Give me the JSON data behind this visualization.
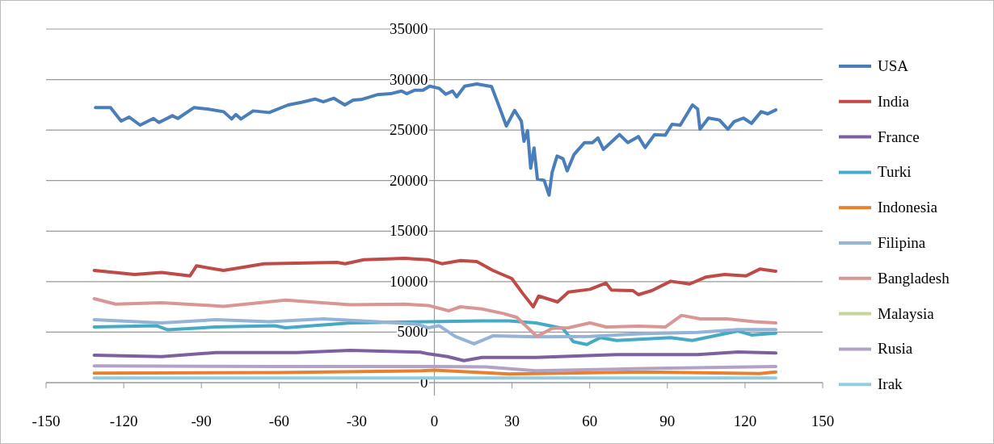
{
  "chart_data": {
    "type": "line",
    "xlim": [
      -150,
      150
    ],
    "xticks": [
      -150,
      -120,
      -90,
      -60,
      -30,
      0,
      30,
      60,
      90,
      120,
      150
    ],
    "ylim": [
      0,
      35000
    ],
    "yticks": [
      0,
      5000,
      10000,
      15000,
      20000,
      25000,
      30000,
      35000
    ],
    "grid": "y",
    "legend": "right",
    "marker": "none",
    "line_style": "solid",
    "series": [
      {
        "name": "USA",
        "color": "#4a7ebb",
        "x": [
          -130.9,
          -125.1,
          -121,
          -117.9,
          -113.7,
          -108.5,
          -106.4,
          -101.2,
          -99.1,
          -92.9,
          -87.7,
          -81.4,
          -78.3,
          -76.7,
          -74.7,
          -70,
          -63.8,
          -56.5,
          -51.3,
          -46.1,
          -42.9,
          -38.8,
          -34.6,
          -31.4,
          -28.3,
          -22.1,
          -16.9,
          -12.7,
          -10.7,
          -7.6,
          -4.4,
          -1.8,
          1.8,
          4.4,
          7,
          8.6,
          11.7,
          16.4,
          22.1,
          25.2,
          27.8,
          31,
          33.6,
          34.6,
          36,
          37.2,
          38.5,
          39.8,
          42.4,
          44.3,
          45.5,
          47.4,
          49.7,
          51.3,
          53.9,
          58,
          61.1,
          63.2,
          65.3,
          71.5,
          74.7,
          78.8,
          81.4,
          85.1,
          89.2,
          91.8,
          95,
          99.7,
          101.7,
          102.6,
          105.9,
          110.1,
          113.4,
          115.8,
          119.4,
          122.5,
          126.2,
          128.8,
          131.9
        ],
        "values": [
          27220,
          27220,
          25890,
          26290,
          25490,
          26150,
          25750,
          26420,
          26150,
          27220,
          27090,
          26820,
          26100,
          26550,
          26100,
          26900,
          26740,
          27490,
          27750,
          28070,
          27800,
          28150,
          27490,
          27970,
          28020,
          28500,
          28600,
          28870,
          28600,
          28950,
          28950,
          29350,
          29140,
          28550,
          28870,
          28290,
          29350,
          29560,
          29300,
          27220,
          25410,
          26950,
          25890,
          23890,
          24950,
          21230,
          23230,
          20160,
          20030,
          18560,
          20830,
          22430,
          22160,
          20960,
          22560,
          23760,
          23760,
          24230,
          23090,
          24560,
          23760,
          24360,
          23270,
          24560,
          24500,
          25570,
          25490,
          27490,
          27090,
          25090,
          26190,
          26000,
          25090,
          25840,
          26190,
          25660,
          26820,
          26610,
          27000
        ]
      },
      {
        "name": "India",
        "color": "#be4b48",
        "x": [
          -131.4,
          -115.8,
          -105.4,
          -94.4,
          -91.9,
          -81.4,
          -65.8,
          -53.3,
          -37.6,
          -34.5,
          -27.3,
          -11.7,
          -2.3,
          2.9,
          10.1,
          16.4,
          22.6,
          29.9,
          34.1,
          38.2,
          40.3,
          47.6,
          51.8,
          60.1,
          66.3,
          68.4,
          76.7,
          78.8,
          84,
          91.3,
          98.6,
          104.8,
          112.1,
          120.4,
          125.7,
          131.9
        ],
        "values": [
          11110,
          10710,
          10900,
          10570,
          11560,
          11110,
          11770,
          11820,
          11900,
          11770,
          12170,
          12300,
          12170,
          11770,
          12090,
          11980,
          11110,
          10310,
          8840,
          7510,
          8570,
          7990,
          8970,
          9240,
          9860,
          9160,
          9110,
          8710,
          9110,
          10040,
          9770,
          10440,
          10710,
          10570,
          11240,
          11030
        ]
      },
      {
        "name": "France",
        "color": "#7d60a0",
        "x": [
          -131.4,
          -105.4,
          -84.5,
          -53.3,
          -32.5,
          -5.4,
          -2.3,
          5.1,
          11.4,
          18.4,
          39.2,
          70.4,
          101.7,
          117.3,
          131.9
        ],
        "values": [
          2720,
          2580,
          2980,
          2980,
          3200,
          3020,
          2850,
          2580,
          2180,
          2500,
          2500,
          2770,
          2770,
          3040,
          2930
        ]
      },
      {
        "name": "Turki",
        "color": "#46aac5",
        "x": [
          -131.4,
          -107.4,
          -103.2,
          -84.5,
          -61.6,
          -57.5,
          -32.5,
          -2.3,
          18.4,
          28.8,
          39.2,
          49.6,
          53.7,
          58.9,
          64.1,
          70.4,
          91.3,
          99.6,
          117.3,
          122.5,
          131.9
        ],
        "values": [
          5510,
          5640,
          5240,
          5510,
          5640,
          5430,
          5910,
          6040,
          6120,
          6120,
          5910,
          5380,
          4050,
          3780,
          4450,
          4180,
          4450,
          4180,
          5110,
          4720,
          4900
        ]
      },
      {
        "name": "Indonesia",
        "color": "#e8812f",
        "x": [
          -131.4,
          -60,
          -5,
          0,
          28.8,
          80.9,
          125.7,
          131.9
        ],
        "values": [
          930,
          1000,
          1170,
          1230,
          850,
          1060,
          900,
          1060
        ]
      },
      {
        "name": "Filipina",
        "color": "#95b3d7",
        "x": [
          -131.4,
          -105.4,
          -84.5,
          -63.8,
          -42.9,
          -22.1,
          -6.5,
          -2.3,
          1.8,
          8,
          15.3,
          22.6,
          39.2,
          60.1,
          80.9,
          101.7,
          117.3,
          131.9
        ],
        "values": [
          6230,
          5910,
          6230,
          6040,
          6310,
          6040,
          5780,
          5430,
          5640,
          4580,
          3840,
          4630,
          4530,
          4580,
          4850,
          4980,
          5250,
          5250
        ]
      },
      {
        "name": "Bangladesh",
        "color": "#d99694",
        "x": [
          -131.4,
          -123.1,
          -105.4,
          -81.4,
          -57.5,
          -32.5,
          -11.7,
          -2.3,
          5.5,
          10.1,
          18.4,
          26.7,
          31.9,
          39.6,
          45.5,
          51.8,
          60.1,
          66.3,
          78.8,
          89.2,
          95.5,
          102.7,
          113.1,
          123.5,
          131.9
        ],
        "values": [
          8310,
          7770,
          7910,
          7560,
          8170,
          7720,
          7770,
          7640,
          7110,
          7510,
          7290,
          6840,
          6450,
          4580,
          5380,
          5430,
          5910,
          5510,
          5590,
          5510,
          6660,
          6310,
          6310,
          6040,
          5910
        ]
      },
      {
        "name": "Malaysia",
        "color": "#c3d69b"
      },
      {
        "name": "Rusia",
        "color": "#b3a2c7",
        "x": [
          -131.4,
          -60,
          0,
          20,
          39.2,
          80.9,
          131.9
        ],
        "values": [
          1650,
          1600,
          1600,
          1550,
          1170,
          1400,
          1600
        ]
      },
      {
        "name": "Irak",
        "color": "#93cddd",
        "x": [
          -131.4,
          0,
          131.9
        ],
        "values": [
          450,
          450,
          450
        ]
      }
    ]
  }
}
